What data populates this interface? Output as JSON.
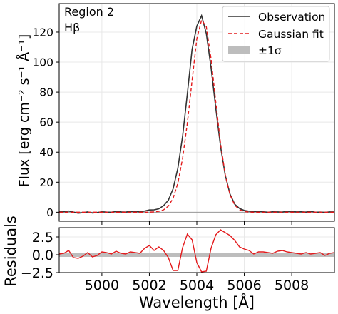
{
  "chart_data": [
    {
      "type": "line",
      "annotations": [
        "Region 2",
        "Hβ"
      ],
      "ylabel": "Flux [erg cm⁻² s⁻¹ Å⁻¹]",
      "xlim": [
        4998.2,
        5009.8
      ],
      "ylim": [
        -6,
        139
      ],
      "x_ticks": [
        5000,
        5002,
        5004,
        5006,
        5008
      ],
      "y_ticks": [
        0,
        20,
        40,
        60,
        80,
        100,
        120
      ],
      "y_tick_labels": [
        "0",
        "20",
        "40",
        "60",
        "80",
        "100",
        "120"
      ],
      "grid": true,
      "legend": {
        "placement": "top-right",
        "entries": [
          "Observation",
          "Gaussian fit",
          "±1σ"
        ]
      },
      "colors": {
        "observation": "#333333",
        "gaussian_fit": "#e31a1c",
        "band": "#bdbdbd",
        "zero_line": "#999999",
        "grid": "#e8e8e8"
      },
      "x": [
        4998.2,
        4998.4,
        4998.6,
        4998.8,
        4999.0,
        4999.2,
        4999.4,
        4999.6,
        4999.8,
        5000.0,
        5000.2,
        5000.4,
        5000.6,
        5000.8,
        5001.0,
        5001.2,
        5001.4,
        5001.6,
        5001.8,
        5002.0,
        5002.2,
        5002.4,
        5002.6,
        5002.8,
        5003.0,
        5003.2,
        5003.4,
        5003.6,
        5003.8,
        5004.0,
        5004.2,
        5004.4,
        5004.6,
        5004.8,
        5005.0,
        5005.2,
        5005.4,
        5005.6,
        5005.8,
        5006.0,
        5006.2,
        5006.4,
        5006.6,
        5006.8,
        5007.0,
        5007.2,
        5007.4,
        5007.6,
        5007.8,
        5008.0,
        5008.2,
        5008.4,
        5008.6,
        5008.8,
        5009.0,
        5009.2,
        5009.4,
        5009.6,
        5009.8
      ],
      "series": [
        {
          "name": "Observation",
          "values": [
            0.2,
            0.4,
            0.8,
            0.1,
            -0.6,
            -0.3,
            0.2,
            -0.5,
            -0.2,
            0.3,
            0.1,
            0.0,
            0.6,
            0.2,
            0.1,
            0.5,
            0.6,
            0.2,
            0.8,
            1.5,
            1.6,
            2.3,
            4.4,
            8.0,
            15.6,
            29.3,
            50.5,
            78.8,
            108.5,
            124.0,
            131.0,
            119.0,
            96.3,
            69.2,
            43.8,
            24.5,
            12.0,
            5.3,
            2.5,
            1.2,
            0.7,
            0.5,
            0.6,
            0.3,
            0.0,
            0.3,
            0.2,
            0.1,
            0.6,
            0.4,
            0.2,
            0.3,
            0.1,
            0.6,
            0.0,
            0.1,
            -0.1,
            0.2,
            0.2
          ]
        },
        {
          "name": "Gaussian fit",
          "values": [
            0,
            0,
            0,
            0,
            0,
            0,
            0,
            0,
            0,
            0,
            0,
            0,
            0,
            0,
            0,
            0,
            0,
            0,
            0,
            0.1,
            0.2,
            0.6,
            1.6,
            4.1,
            9.3,
            19.3,
            35.8,
            59.3,
            87.7,
            115.6,
            128.0,
            123.6,
            102.2,
            73.3,
            45.7,
            24.7,
            11.6,
            4.7,
            1.7,
            0.5,
            0.1,
            0,
            0,
            0,
            0,
            0,
            0,
            0,
            0,
            0,
            0,
            0,
            0,
            0,
            0,
            0,
            0,
            0,
            0
          ]
        }
      ]
    },
    {
      "type": "line",
      "xlabel": "Wavelength [Å]",
      "ylabel": "Residuals",
      "xlim": [
        4998.2,
        5009.8
      ],
      "ylim": [
        -2.5,
        3.8
      ],
      "x_ticks": [
        5000,
        5002,
        5004,
        5006,
        5008
      ],
      "x_tick_labels": [
        "5000",
        "5002",
        "5004",
        "5006",
        "5008"
      ],
      "y_ticks": [
        2.5,
        0.0,
        -2.5
      ],
      "y_tick_labels": [
        "2.5",
        "0.0",
        "−2.5"
      ],
      "grid": true,
      "band": [
        -0.3,
        0.3
      ],
      "x": [
        4998.2,
        4998.4,
        4998.6,
        4998.8,
        4999.0,
        4999.2,
        4999.4,
        4999.6,
        4999.8,
        5000.0,
        5000.2,
        5000.4,
        5000.6,
        5000.8,
        5001.0,
        5001.2,
        5001.4,
        5001.6,
        5001.8,
        5002.0,
        5002.2,
        5002.4,
        5002.6,
        5002.8,
        5003.0,
        5003.2,
        5003.4,
        5003.6,
        5003.8,
        5004.0,
        5004.2,
        5004.4,
        5004.6,
        5004.8,
        5005.0,
        5005.2,
        5005.4,
        5005.6,
        5005.8,
        5006.0,
        5006.2,
        5006.4,
        5006.6,
        5006.8,
        5007.0,
        5007.2,
        5007.4,
        5007.6,
        5007.8,
        5008.0,
        5008.2,
        5008.4,
        5008.6,
        5008.8,
        5009.0,
        5009.2,
        5009.4,
        5009.6,
        5009.8
      ],
      "series": [
        {
          "name": "Residuals",
          "values": [
            0.1,
            0.2,
            0.6,
            -0.4,
            -0.5,
            -0.2,
            0.3,
            -0.3,
            -0.1,
            0.4,
            0.3,
            0.1,
            0.5,
            0.2,
            0.1,
            0.4,
            0.3,
            0.2,
            0.9,
            1.3,
            0.6,
            1.1,
            0.6,
            -0.4,
            -2.2,
            -2.2,
            1.0,
            2.9,
            2.1,
            -1.1,
            -2.4,
            -2.3,
            0.9,
            2.8,
            3.5,
            3.1,
            2.7,
            2.0,
            1.1,
            0.8,
            0.6,
            0.1,
            0.4,
            0.4,
            0.3,
            0.2,
            0.5,
            0.6,
            0.4,
            0.3,
            0.2,
            0.1,
            0.3,
            0.1,
            0.2,
            0.3,
            -0.1,
            0.2,
            0.3
          ]
        }
      ]
    }
  ]
}
